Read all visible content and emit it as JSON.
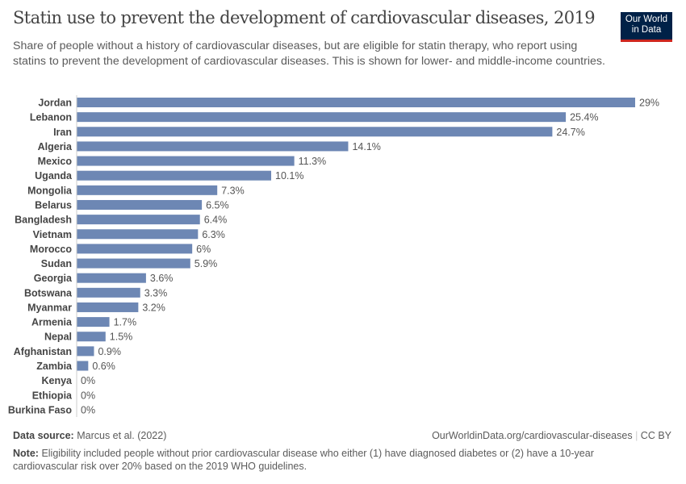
{
  "logo": {
    "line1": "Our World",
    "line2": "in Data"
  },
  "chart_data": {
    "type": "bar",
    "orientation": "horizontal",
    "title": "Statin use to prevent the development of cardiovascular diseases, 2019",
    "subtitle": "Share of people without a history of cardiovascular diseases, but are eligible for statin therapy, who report using statins to prevent the development of cardiovascular diseases. This is shown for lower- and middle-income countries.",
    "categories": [
      "Jordan",
      "Lebanon",
      "Iran",
      "Algeria",
      "Mexico",
      "Uganda",
      "Mongolia",
      "Belarus",
      "Bangladesh",
      "Vietnam",
      "Morocco",
      "Sudan",
      "Georgia",
      "Botswana",
      "Myanmar",
      "Armenia",
      "Nepal",
      "Afghanistan",
      "Zambia",
      "Kenya",
      "Ethiopia",
      "Burkina Faso"
    ],
    "values": [
      29,
      25.4,
      24.7,
      14.1,
      11.3,
      10.1,
      7.3,
      6.5,
      6.4,
      6.3,
      6,
      5.9,
      3.6,
      3.3,
      3.2,
      1.7,
      1.5,
      0.9,
      0.6,
      0,
      0,
      0
    ],
    "unit": "%",
    "xlim": [
      0,
      29
    ],
    "grid": false,
    "bar_color": "#6d87b4"
  },
  "footer": {
    "source_label": "Data source:",
    "source": "Marcus et al. (2022)",
    "url": "OurWorldinData.org/cardiovascular-diseases",
    "license": "CC BY",
    "note_label": "Note:",
    "note": "Eligibility included people without prior cardiovascular disease who either (1) have diagnosed diabetes or (2) have a 10-year cardiovascular risk over 20% based on the 2019 WHO guidelines."
  }
}
